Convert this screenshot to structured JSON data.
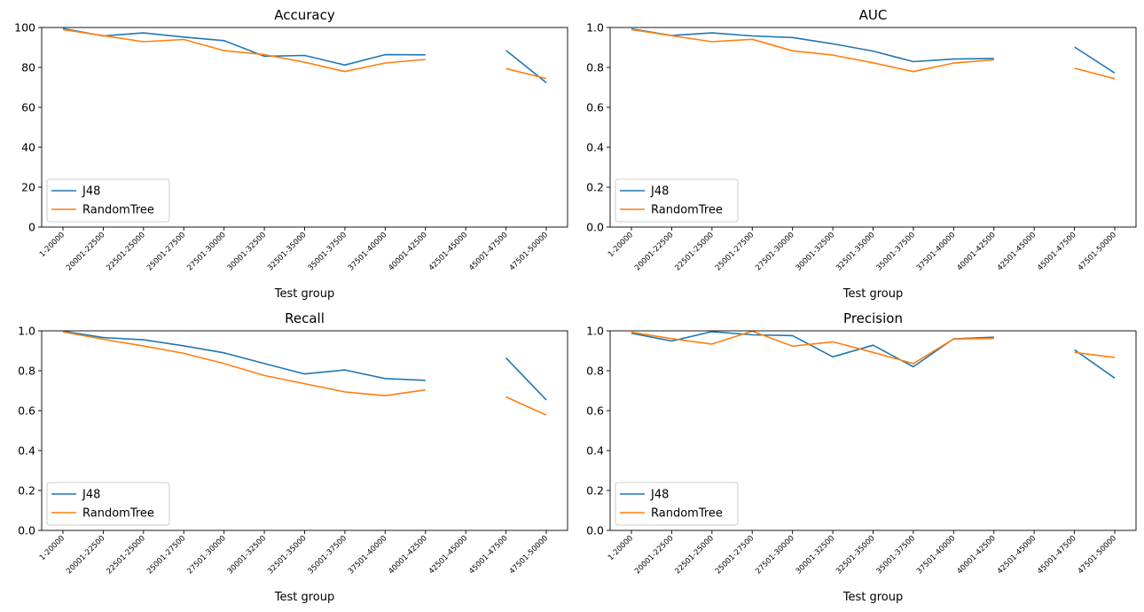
{
  "colors": {
    "J48": "#1f77b4",
    "RandomTree": "#ff7f0e"
  },
  "chart_data": [
    {
      "type": "line",
      "title": "Accuracy",
      "xlabel": "Test group",
      "ylabel": "",
      "categories": [
        "1-20000",
        "20001-22500",
        "22501-25000",
        "25001-27500",
        "27501-30000",
        "30001-32500",
        "32501-35000",
        "35001-37500",
        "37501-40000",
        "40001-42500",
        "42501-45000",
        "45001-47500",
        "47501-50000"
      ],
      "ylim": [
        0,
        100
      ],
      "yticks": [
        "0",
        "20",
        "40",
        "60",
        "80",
        "100"
      ],
      "legend": "lower-left",
      "grid": false,
      "series": [
        {
          "name": "J48",
          "values": [
            99.5,
            95.8,
            97.3,
            95.2,
            93.4,
            85.6,
            86.0,
            81.2,
            86.4,
            86.3,
            null,
            88.6,
            72.3
          ]
        },
        {
          "name": "RandomTree",
          "values": [
            99.0,
            95.9,
            92.9,
            94.0,
            88.4,
            86.4,
            82.6,
            77.9,
            82.2,
            84.0,
            null,
            79.4,
            74.4
          ]
        }
      ]
    },
    {
      "type": "line",
      "title": "AUC",
      "xlabel": "Test group",
      "ylabel": "",
      "categories": [
        "1-20000",
        "20001-22500",
        "22501-25000",
        "25001-27500",
        "27501-30000",
        "30001-32500",
        "32501-35000",
        "35001-37500",
        "37501-40000",
        "40001-42500",
        "42501-45000",
        "45001-47500",
        "47501-50000"
      ],
      "ylim": [
        0,
        1
      ],
      "yticks": [
        "0.0",
        "0.2",
        "0.4",
        "0.6",
        "0.8",
        "1.0"
      ],
      "legend": "lower-left",
      "grid": false,
      "series": [
        {
          "name": "J48",
          "values": [
            0.993,
            0.96,
            0.973,
            0.958,
            0.95,
            0.918,
            0.882,
            0.829,
            0.842,
            0.845,
            null,
            0.902,
            0.772
          ]
        },
        {
          "name": "RandomTree",
          "values": [
            0.99,
            0.959,
            0.929,
            0.941,
            0.883,
            0.862,
            0.823,
            0.779,
            0.822,
            0.838,
            null,
            0.796,
            0.743
          ]
        }
      ]
    },
    {
      "type": "line",
      "title": "Recall",
      "xlabel": "Test group",
      "ylabel": "",
      "categories": [
        "1-20000",
        "20001-22500",
        "22501-25000",
        "25001-27500",
        "27501-30000",
        "30001-32500",
        "32501-35000",
        "35001-37500",
        "37501-40000",
        "40001-42500",
        "42501-45000",
        "45001-47500",
        "47501-50000"
      ],
      "ylim": [
        0,
        1
      ],
      "yticks": [
        "0.0",
        "0.2",
        "0.4",
        "0.6",
        "0.8",
        "1.0"
      ],
      "legend": "lower-left",
      "grid": false,
      "series": [
        {
          "name": "J48",
          "values": [
            0.998,
            0.966,
            0.955,
            0.925,
            0.89,
            0.836,
            0.784,
            0.804,
            0.761,
            0.752,
            null,
            0.864,
            0.654
          ]
        },
        {
          "name": "RandomTree",
          "values": [
            0.995,
            0.958,
            0.924,
            0.887,
            0.836,
            0.776,
            0.735,
            0.694,
            0.675,
            0.704,
            null,
            0.669,
            0.578
          ]
        }
      ]
    },
    {
      "type": "line",
      "title": "Precision",
      "xlabel": "Test group",
      "ylabel": "",
      "categories": [
        "1-20000",
        "20001-22500",
        "22501-25000",
        "25001-27500",
        "27501-30000",
        "30001-32500",
        "32501-35000",
        "35001-37500",
        "37501-40000",
        "40001-42500",
        "42501-45000",
        "45001-47500",
        "47501-50000"
      ],
      "ylim": [
        0,
        1
      ],
      "yticks": [
        "0.0",
        "0.2",
        "0.4",
        "0.6",
        "0.8",
        "1.0"
      ],
      "legend": "lower-left",
      "grid": false,
      "series": [
        {
          "name": "J48",
          "values": [
            0.988,
            0.949,
            0.996,
            0.98,
            0.976,
            0.87,
            0.928,
            0.82,
            0.96,
            0.968,
            null,
            0.905,
            0.763
          ]
        },
        {
          "name": "RandomTree",
          "values": [
            0.993,
            0.961,
            0.934,
            0.998,
            0.923,
            0.945,
            0.892,
            0.836,
            0.959,
            0.962,
            null,
            0.892,
            0.866
          ]
        }
      ]
    }
  ]
}
